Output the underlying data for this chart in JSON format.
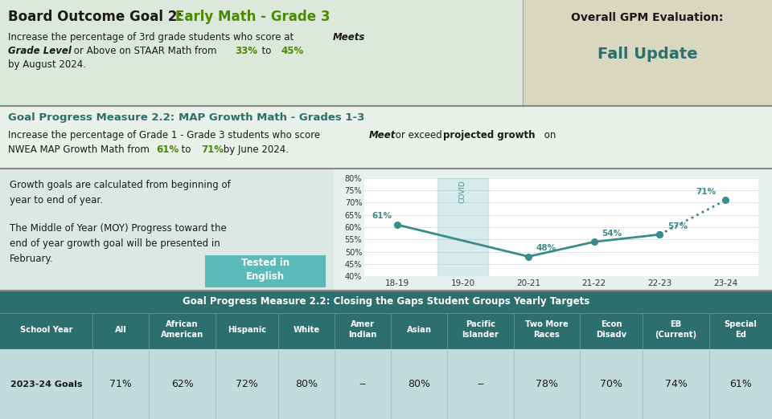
{
  "bg_outer": "#f0f0f0",
  "header_bg": "#dce8dc",
  "eval_bg": "#d8d8c0",
  "gpm_bg": "#eaf0ea",
  "main_bg": "#dce8e4",
  "chart_bg": "#ffffff",
  "table_title_bg": "#2d6e6e",
  "table_header_bg": "#2d6e6e",
  "table_row_bg": "#c2dcdc",
  "table_grid_color": "#ffffff",
  "teal_line": "#3a8c8c",
  "teal_dark": "#2d6e6e",
  "teal_covid": "#90c8c8",
  "green_pct": "#4a8a00",
  "black": "#1a1a1a",
  "white": "#ffffff",
  "chart_years": [
    "18-19",
    "19-20",
    "20-21",
    "21-22",
    "22-23",
    "23-24"
  ],
  "chart_values": [
    61,
    null,
    48,
    54,
    57,
    71
  ],
  "chart_yticks": [
    40,
    45,
    50,
    55,
    60,
    65,
    70,
    75,
    80
  ],
  "table_cols": [
    "School Year",
    "All",
    "African\nAmerican",
    "Hispanic",
    "White",
    "Amer\nIndian",
    "Asian",
    "Pacific\nIslander",
    "Two More\nRaces",
    "Econ\nDisadv",
    "EB\n(Current)",
    "Special\nEd"
  ],
  "table_row_label": "2023-24 Goals",
  "table_values": [
    "71%",
    "62%",
    "72%",
    "80%",
    "--",
    "80%",
    "--",
    "78%",
    "70%",
    "74%",
    "61%"
  ],
  "col_widths_norm": [
    1.4,
    0.85,
    1.0,
    0.95,
    0.85,
    0.85,
    0.85,
    1.0,
    1.0,
    0.95,
    1.0,
    0.95
  ]
}
